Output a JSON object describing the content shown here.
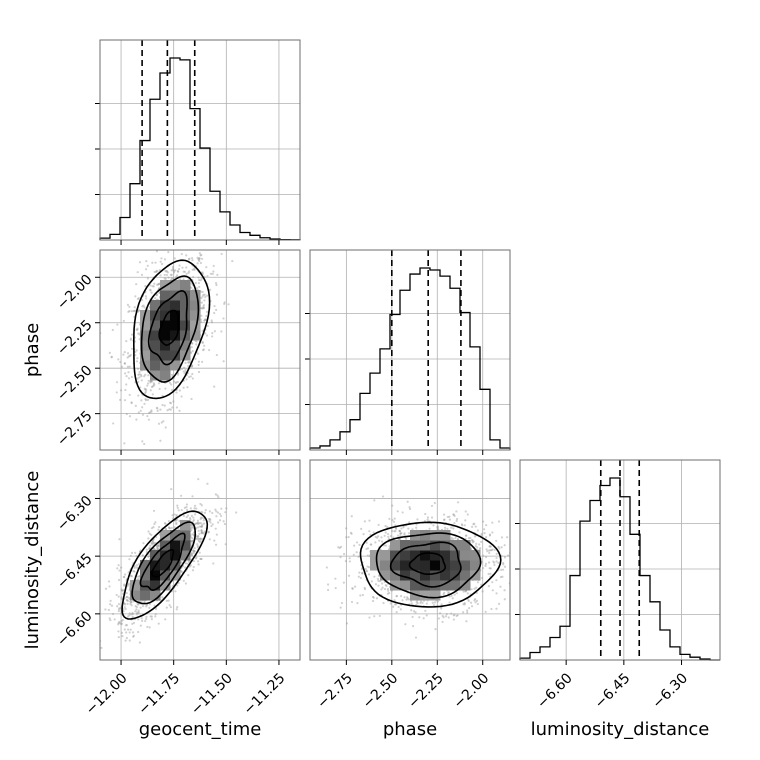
{
  "chart_data": {
    "type": "corner",
    "parameters": [
      "geocent_time",
      "phase",
      "luminosity_distance"
    ],
    "grid": true,
    "marginals": [
      {
        "name": "geocent_time",
        "range": [
          -12.1,
          -11.15
        ],
        "ticks": [
          -12.0,
          -11.75,
          -11.5,
          -11.25
        ],
        "tick_labels": [
          "−12.00",
          "−11.75",
          "−11.50",
          "−11.25"
        ],
        "quantiles": [
          -11.9,
          -11.78,
          -11.65
        ],
        "histogram_edges": [
          -12.1,
          -11.15
        ],
        "histogram_counts": [
          0.01,
          0.03,
          0.12,
          0.3,
          0.53,
          0.75,
          0.89,
          0.97,
          0.96,
          0.7,
          0.49,
          0.26,
          0.15,
          0.08,
          0.04,
          0.025,
          0.012,
          0.005,
          0.002,
          0.001
        ]
      },
      {
        "name": "phase",
        "range": [
          -2.95,
          -1.85
        ],
        "ticks": [
          -2.75,
          -2.5,
          -2.25,
          -2.0
        ],
        "tick_labels": [
          "−2.75",
          "−2.50",
          "−2.25",
          "−2.00"
        ],
        "quantiles": [
          -2.5,
          -2.3,
          -2.12
        ],
        "histogram_edges": [
          -2.95,
          -1.85
        ],
        "histogram_counts": [
          0.01,
          0.02,
          0.05,
          0.09,
          0.15,
          0.28,
          0.38,
          0.5,
          0.67,
          0.79,
          0.87,
          0.9,
          0.89,
          0.86,
          0.8,
          0.68,
          0.51,
          0.3,
          0.05,
          0.01
        ]
      },
      {
        "name": "luminosity_distance",
        "range": [
          -6.72,
          -6.2
        ],
        "ticks": [
          -6.6,
          -6.45,
          -6.3
        ],
        "tick_labels": [
          "−6.60",
          "−6.45",
          "−6.30"
        ],
        "quantiles": [
          -6.51,
          -6.46,
          -6.41
        ],
        "histogram_edges": [
          -6.72,
          -6.2
        ],
        "histogram_counts": [
          0.01,
          0.04,
          0.07,
          0.12,
          0.18,
          0.45,
          0.74,
          0.85,
          0.93,
          0.97,
          0.87,
          0.67,
          0.45,
          0.31,
          0.16,
          0.07,
          0.03,
          0.015,
          0.005,
          0.0
        ]
      }
    ],
    "pairs": [
      {
        "x": "geocent_time",
        "y": "phase",
        "mean": [
          -11.77,
          -2.28
        ],
        "sd": [
          0.09,
          0.19
        ],
        "rho": 0.35
      },
      {
        "x": "geocent_time",
        "y": "luminosity_distance",
        "mean": [
          -11.8,
          -6.47
        ],
        "sd": [
          0.1,
          0.07
        ],
        "rho": 0.75
      },
      {
        "x": "phase",
        "y": "luminosity_distance",
        "mean": [
          -2.3,
          -6.47
        ],
        "sd": [
          0.19,
          0.055
        ],
        "rho": 0.0
      }
    ],
    "contour_levels_sigma": [
      0.5,
      1.0,
      1.5,
      2.0
    ]
  }
}
